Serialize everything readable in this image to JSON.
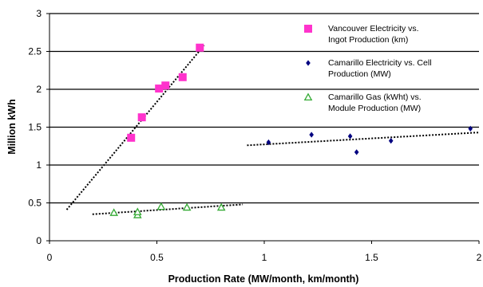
{
  "chart_data": {
    "type": "scatter",
    "xlabel": "Production Rate (MW/month, km/month)",
    "ylabel": "Million kWh",
    "xlim": [
      0,
      2
    ],
    "ylim": [
      0,
      3
    ],
    "x_ticks": [
      "0",
      "0.5",
      "1",
      "1.5",
      "2"
    ],
    "y_ticks": [
      "0",
      "0.5",
      "1",
      "1.5",
      "2",
      "2.5",
      "3"
    ],
    "grid": "horizontal",
    "legend_position": "top-right",
    "series": [
      {
        "name_lines": [
          "Vancouver Electricity vs.",
          "Ingot Production (km)"
        ],
        "marker": "square",
        "color": "#ff33cc",
        "points": [
          [
            0.38,
            1.36
          ],
          [
            0.43,
            1.63
          ],
          [
            0.51,
            2.01
          ],
          [
            0.54,
            2.05
          ],
          [
            0.62,
            2.16
          ],
          [
            0.7,
            2.55
          ]
        ],
        "trend": [
          [
            0.08,
            0.41
          ],
          [
            0.72,
            2.58
          ]
        ]
      },
      {
        "name_lines": [
          "Camarillo Electricity vs. Cell",
          "Production (MW)"
        ],
        "marker": "diamond",
        "color": "#000080",
        "points": [
          [
            1.02,
            1.3
          ],
          [
            1.22,
            1.4
          ],
          [
            1.4,
            1.38
          ],
          [
            1.43,
            1.17
          ],
          [
            1.59,
            1.32
          ],
          [
            1.96,
            1.48
          ]
        ],
        "trend": [
          [
            0.92,
            1.26
          ],
          [
            2.0,
            1.43
          ]
        ]
      },
      {
        "name_lines": [
          "Camarillo Gas (kWht) vs.",
          "Module Production (MW)"
        ],
        "marker": "triangle",
        "color": "#33aa33",
        "points": [
          [
            0.3,
            0.37
          ],
          [
            0.41,
            0.34
          ],
          [
            0.41,
            0.38
          ],
          [
            0.52,
            0.45
          ],
          [
            0.64,
            0.44
          ],
          [
            0.8,
            0.44
          ]
        ],
        "trend": [
          [
            0.2,
            0.35
          ],
          [
            0.9,
            0.48
          ]
        ]
      }
    ]
  }
}
